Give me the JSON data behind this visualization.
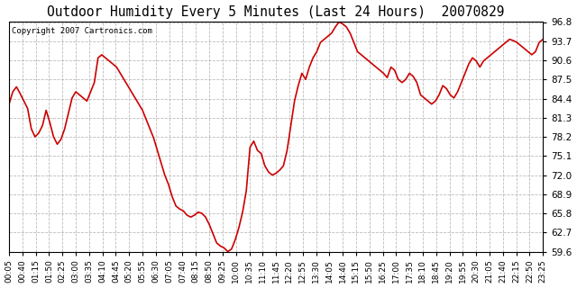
{
  "title": "Outdoor Humidity Every 5 Minutes (Last 24 Hours)  20070829",
  "copyright": "Copyright 2007 Cartronics.com",
  "line_color": "#cc0000",
  "bg_color": "#ffffff",
  "plot_bg_color": "#ffffff",
  "grid_color": "#aaaaaa",
  "yticks": [
    59.6,
    62.7,
    65.8,
    68.9,
    72.0,
    75.1,
    78.2,
    81.3,
    84.4,
    87.5,
    90.6,
    93.7,
    96.8
  ],
  "ylim": [
    59.6,
    96.8
  ],
  "xtick_labels": [
    "00:05",
    "00:40",
    "01:15",
    "01:50",
    "02:25",
    "03:00",
    "03:35",
    "04:10",
    "04:45",
    "05:20",
    "05:55",
    "06:30",
    "07:05",
    "07:40",
    "08:15",
    "08:50",
    "09:25",
    "10:00",
    "10:35",
    "11:10",
    "11:45",
    "12:20",
    "12:55",
    "13:30",
    "14:05",
    "14:40",
    "15:15",
    "15:50",
    "16:25",
    "17:00",
    "17:35",
    "18:10",
    "18:45",
    "19:20",
    "19:55",
    "20:30",
    "21:05",
    "21:40",
    "22:15",
    "22:50",
    "23:25"
  ],
  "humidity_values": [
    83.5,
    85.5,
    86.3,
    85.2,
    84.0,
    82.8,
    79.5,
    78.2,
    78.8,
    80.0,
    82.5,
    80.5,
    78.2,
    77.0,
    77.8,
    79.5,
    82.0,
    84.5,
    85.5,
    85.0,
    84.5,
    84.0,
    85.5,
    87.0,
    91.0,
    91.5,
    91.0,
    90.5,
    90.0,
    89.5,
    88.5,
    87.5,
    86.5,
    85.5,
    84.5,
    83.5,
    82.5,
    81.0,
    79.5,
    78.0,
    76.0,
    74.0,
    72.0,
    70.5,
    68.5,
    67.0,
    66.5,
    66.2,
    65.5,
    65.2,
    65.5,
    66.0,
    65.8,
    65.2,
    64.0,
    62.5,
    61.0,
    60.5,
    60.2,
    59.6,
    60.0,
    61.5,
    63.5,
    66.0,
    69.5,
    76.5,
    77.5,
    76.0,
    75.5,
    73.5,
    72.5,
    72.0,
    72.3,
    72.8,
    73.5,
    76.0,
    80.0,
    84.0,
    86.5,
    88.5,
    87.5,
    89.5,
    91.0,
    92.0,
    93.5,
    94.0,
    94.5,
    95.0,
    96.0,
    96.8,
    96.5,
    96.0,
    95.0,
    93.5,
    92.0,
    91.5,
    91.0,
    90.5,
    90.0,
    89.5,
    89.0,
    88.5,
    87.8,
    89.5,
    89.0,
    87.5,
    87.0,
    87.5,
    88.5,
    88.0,
    87.0,
    85.0,
    84.5,
    84.0,
    83.5,
    84.0,
    85.0,
    86.5,
    86.0,
    85.0,
    84.5,
    85.5,
    87.0,
    88.5,
    90.0,
    91.0,
    90.5,
    89.5,
    90.5,
    91.0,
    91.5,
    92.0,
    92.5,
    93.0,
    93.5,
    94.0,
    93.8,
    93.5,
    93.0,
    92.5,
    92.0,
    91.5,
    92.0,
    93.5,
    94.0
  ]
}
